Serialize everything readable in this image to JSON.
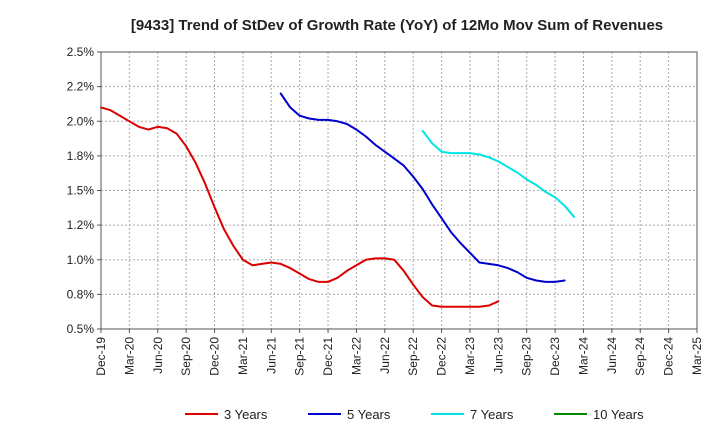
{
  "chart_data": {
    "type": "line",
    "title": "[9433]  Trend of StDev of Growth Rate (YoY) of 12Mo Mov Sum of Revenues",
    "xlabel": "",
    "ylabel": "",
    "x_tick_labels": [
      "Dec-19",
      "Mar-20",
      "Jun-20",
      "Sep-20",
      "Dec-20",
      "Mar-21",
      "Jun-21",
      "Sep-21",
      "Dec-21",
      "Mar-22",
      "Jun-22",
      "Sep-22",
      "Dec-22",
      "Mar-23",
      "Jun-23",
      "Sep-23",
      "Dec-23",
      "Mar-24",
      "Jun-24",
      "Sep-24",
      "Dec-24",
      "Mar-25"
    ],
    "y_tick_labels": [
      "0.5%",
      "0.8%",
      "1.0%",
      "1.2%",
      "1.5%",
      "1.8%",
      "2.0%",
      "2.2%",
      "2.5%"
    ],
    "ylim": [
      0.5,
      2.5
    ],
    "grid": true,
    "legend_position": "bottom",
    "series": [
      {
        "name": "3 Years",
        "color": "#dd0000",
        "start_index": 0,
        "values": [
          2.1,
          2.08,
          2.04,
          2.0,
          1.96,
          1.94,
          1.96,
          1.95,
          1.91,
          1.82,
          1.7,
          1.55,
          1.38,
          1.22,
          1.1,
          1.0,
          0.96,
          0.97,
          0.98,
          0.97,
          0.94,
          0.9,
          0.86,
          0.84,
          0.84,
          0.87,
          0.92,
          0.96,
          1.0,
          1.01,
          1.01,
          1.0,
          0.92,
          0.82,
          0.73,
          0.67,
          0.66,
          0.66,
          0.66,
          0.66,
          0.66,
          0.67,
          0.7
        ]
      },
      {
        "name": "5 Years",
        "color": "#0000cc",
        "start_index": 19,
        "values": [
          2.2,
          2.1,
          2.04,
          2.02,
          2.01,
          2.01,
          2.0,
          1.98,
          1.94,
          1.89,
          1.83,
          1.78,
          1.73,
          1.68,
          1.6,
          1.51,
          1.4,
          1.3,
          1.2,
          1.12,
          1.05,
          0.98,
          0.97,
          0.96,
          0.94,
          0.91,
          0.87,
          0.85,
          0.84,
          0.84,
          0.85
        ]
      },
      {
        "name": "7 Years",
        "color": "#00e5e5",
        "start_index": 34,
        "values": [
          1.93,
          1.84,
          1.78,
          1.77,
          1.77,
          1.77,
          1.76,
          1.74,
          1.71,
          1.67,
          1.63,
          1.58,
          1.54,
          1.49,
          1.45,
          1.39,
          1.31
        ]
      },
      {
        "name": "10 Years",
        "color": "#008800",
        "start_index": 0,
        "values": []
      }
    ]
  }
}
